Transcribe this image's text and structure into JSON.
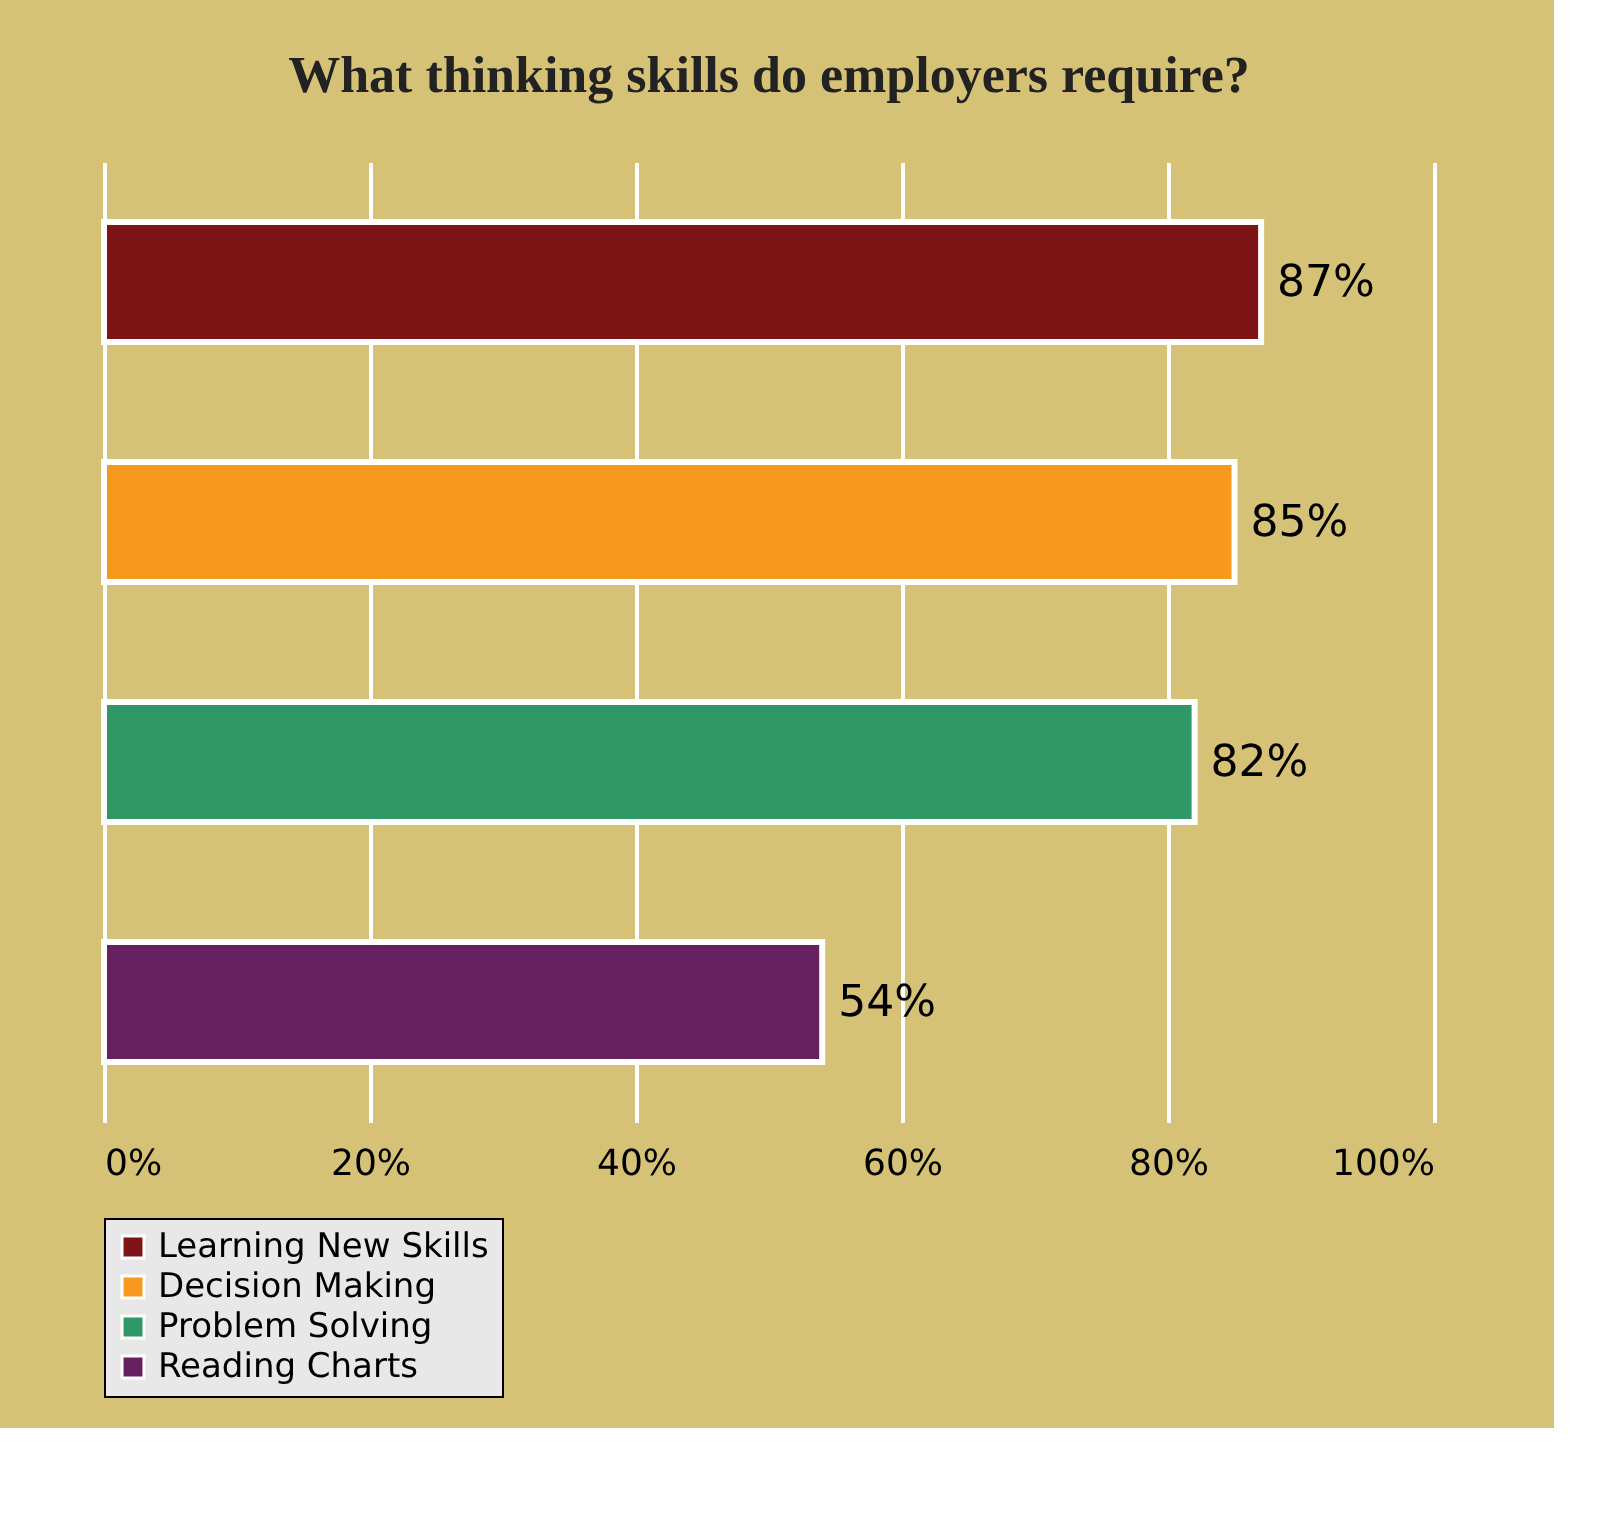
{
  "chart_data": {
    "type": "bar",
    "orientation": "horizontal",
    "title": "What thinking skills do employers require?",
    "categories": [
      null,
      null,
      null,
      null
    ],
    "series": [
      {
        "name": "Learning New Skills",
        "color": "#7d1416",
        "values": [
          87,
          null,
          null,
          null
        ],
        "value_labels": [
          "87%",
          null,
          null,
          null
        ]
      },
      {
        "name": "Decision Making",
        "color": "#f7991f",
        "values": [
          null,
          85,
          null,
          null
        ],
        "value_labels": [
          null,
          "85%",
          null,
          null
        ]
      },
      {
        "name": "Problem Solving",
        "color": "#2f9866",
        "values": [
          null,
          null,
          82,
          null
        ],
        "value_labels": [
          null,
          null,
          "82%",
          null
        ]
      },
      {
        "name": "Reading Charts",
        "color": "#662161",
        "values": [
          null,
          null,
          null,
          54
        ],
        "value_labels": [
          null,
          null,
          null,
          "54%"
        ]
      }
    ],
    "xlim": [
      0,
      100
    ],
    "xticks": [
      {
        "value": 0,
        "label": "0%"
      },
      {
        "value": 20,
        "label": "20%"
      },
      {
        "value": 40,
        "label": "40%"
      },
      {
        "value": 60,
        "label": "60%"
      },
      {
        "value": 80,
        "label": "80%"
      },
      {
        "value": 100,
        "label": "100%"
      }
    ],
    "grid": "x",
    "legend": "bottom",
    "tick_labels": "x"
  }
}
